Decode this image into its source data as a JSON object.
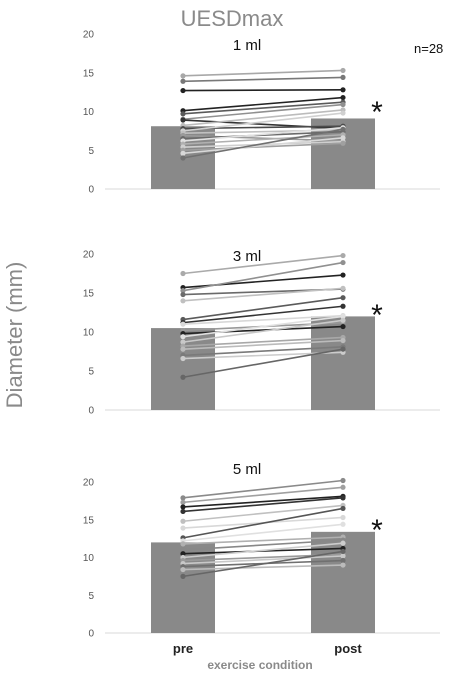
{
  "title": "UESDmax",
  "ylabel": "Diameter (mm)",
  "xlabel": "exercise condition",
  "n_label": "n=28",
  "categories": [
    "pre",
    "post"
  ],
  "significance_marker": "*",
  "colors": {
    "bar": "#898989",
    "axis": "#d9d9d9"
  },
  "chart_data": [
    {
      "type": "bar",
      "label": "1 ml",
      "categories": [
        "pre",
        "post"
      ],
      "values": [
        8.1,
        9.1
      ],
      "ylim": [
        0,
        20
      ],
      "yticks": [
        "0",
        "5",
        "10",
        "15",
        "20"
      ],
      "pairs": [
        {
          "pre": 14.6,
          "post": 15.3,
          "color": "#a8a8a8"
        },
        {
          "pre": 13.9,
          "post": 14.4,
          "color": "#787878"
        },
        {
          "pre": 12.7,
          "post": 12.8,
          "color": "#222222"
        },
        {
          "pre": 10.1,
          "post": 11.8,
          "color": "#222222"
        },
        {
          "pre": 9.7,
          "post": 11.2,
          "color": "#5a5a5a"
        },
        {
          "pre": 9.0,
          "post": 10.9,
          "color": "#909090"
        },
        {
          "pre": 8.9,
          "post": 7.8,
          "color": "#333333"
        },
        {
          "pre": 8.2,
          "post": 10.2,
          "color": "#bcbcbc"
        },
        {
          "pre": 7.8,
          "post": 8.1,
          "color": "#4a4a4a"
        },
        {
          "pre": 7.5,
          "post": 9.8,
          "color": "#d0d0d0"
        },
        {
          "pre": 7.2,
          "post": 7.6,
          "color": "#c0c0c0"
        },
        {
          "pre": 6.9,
          "post": 6.2,
          "color": "#9a9a9a"
        },
        {
          "pre": 6.5,
          "post": 7.4,
          "color": "#6a6a6a"
        },
        {
          "pre": 6.2,
          "post": 7.9,
          "color": "#e0e0e0"
        },
        {
          "pre": 5.8,
          "post": 7.0,
          "color": "#b0b0b0"
        },
        {
          "pre": 5.4,
          "post": 6.1,
          "color": "#cfcfcf"
        },
        {
          "pre": 5.0,
          "post": 5.9,
          "color": "#a0a0a0"
        },
        {
          "pre": 4.6,
          "post": 6.6,
          "color": "#d8d8d8"
        },
        {
          "pre": 4.0,
          "post": 7.7,
          "color": "#707070"
        }
      ]
    },
    {
      "type": "bar",
      "label": "3 ml",
      "categories": [
        "pre",
        "post"
      ],
      "values": [
        10.5,
        12.0
      ],
      "ylim": [
        0,
        20
      ],
      "yticks": [
        "0",
        "5",
        "10",
        "15",
        "20"
      ],
      "pairs": [
        {
          "pre": 17.5,
          "post": 19.8,
          "color": "#aaaaaa"
        },
        {
          "pre": 15.7,
          "post": 17.3,
          "color": "#222222"
        },
        {
          "pre": 15.3,
          "post": 18.9,
          "color": "#909090"
        },
        {
          "pre": 14.8,
          "post": 15.5,
          "color": "#6a6a6a"
        },
        {
          "pre": 14.0,
          "post": 15.6,
          "color": "#c0c0c0"
        },
        {
          "pre": 11.6,
          "post": 14.4,
          "color": "#5a5a5a"
        },
        {
          "pre": 11.2,
          "post": 13.3,
          "color": "#333333"
        },
        {
          "pre": 11.0,
          "post": 12.1,
          "color": "#d8d8d8"
        },
        {
          "pre": 10.2,
          "post": 11.2,
          "color": "#999999"
        },
        {
          "pre": 9.8,
          "post": 10.7,
          "color": "#222222"
        },
        {
          "pre": 9.4,
          "post": 12.0,
          "color": "#e0e0e0"
        },
        {
          "pre": 8.7,
          "post": 11.5,
          "color": "#c8c8c8"
        },
        {
          "pre": 8.2,
          "post": 9.3,
          "color": "#a8a8a8"
        },
        {
          "pre": 7.8,
          "post": 8.9,
          "color": "#bbbbbb"
        },
        {
          "pre": 7.0,
          "post": 8.1,
          "color": "#7a7a7a"
        },
        {
          "pre": 6.6,
          "post": 7.4,
          "color": "#cccccc"
        },
        {
          "pre": 4.2,
          "post": 7.8,
          "color": "#666666"
        }
      ]
    },
    {
      "type": "bar",
      "label": "5 ml",
      "categories": [
        "pre",
        "post"
      ],
      "values": [
        12.0,
        13.4
      ],
      "ylim": [
        0,
        20
      ],
      "yticks": [
        "0",
        "5",
        "10",
        "15",
        "20"
      ],
      "pairs": [
        {
          "pre": 17.9,
          "post": 20.2,
          "color": "#8a8a8a"
        },
        {
          "pre": 17.3,
          "post": 19.3,
          "color": "#a0a0a0"
        },
        {
          "pre": 16.7,
          "post": 18.1,
          "color": "#222222"
        },
        {
          "pre": 16.1,
          "post": 17.9,
          "color": "#333333"
        },
        {
          "pre": 14.8,
          "post": 16.9,
          "color": "#c0c0c0"
        },
        {
          "pre": 13.9,
          "post": 15.3,
          "color": "#d8d8d8"
        },
        {
          "pre": 12.6,
          "post": 16.5,
          "color": "#555555"
        },
        {
          "pre": 12.2,
          "post": 14.4,
          "color": "#e0e0e0"
        },
        {
          "pre": 11.8,
          "post": 12.7,
          "color": "#b0b0b0"
        },
        {
          "pre": 11.0,
          "post": 12.3,
          "color": "#888888"
        },
        {
          "pre": 10.5,
          "post": 11.2,
          "color": "#222222"
        },
        {
          "pre": 10.0,
          "post": 11.9,
          "color": "#cccccc"
        },
        {
          "pre": 9.6,
          "post": 10.4,
          "color": "#9a9a9a"
        },
        {
          "pre": 9.2,
          "post": 10.2,
          "color": "#c8c8c8"
        },
        {
          "pre": 8.8,
          "post": 9.6,
          "color": "#707070"
        },
        {
          "pre": 8.4,
          "post": 9.0,
          "color": "#bbbbbb"
        },
        {
          "pre": 7.5,
          "post": 10.8,
          "color": "#666666"
        }
      ]
    }
  ]
}
